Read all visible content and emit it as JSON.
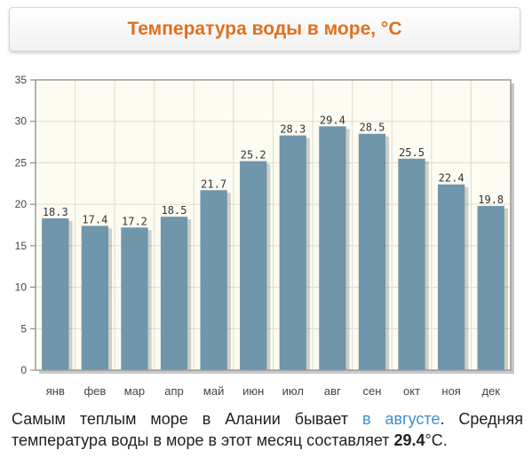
{
  "header": {
    "title": "Температура воды в море, °C"
  },
  "chart_data": {
    "type": "bar",
    "categories": [
      "янв",
      "фев",
      "мар",
      "апр",
      "май",
      "июн",
      "июл",
      "авг",
      "сен",
      "окт",
      "ноя",
      "дек"
    ],
    "values": [
      18.3,
      17.4,
      17.2,
      18.5,
      21.7,
      25.2,
      28.3,
      29.4,
      28.5,
      25.5,
      22.4,
      19.8
    ],
    "data_labels": [
      "18.3",
      "17.4",
      "17.2",
      "18.5",
      "21.7",
      "25.2",
      "28.3",
      "29.4",
      "28.5",
      "25.5",
      "22.4",
      "19.8"
    ],
    "ylim": [
      0,
      35
    ],
    "yticks": [
      0,
      5,
      10,
      15,
      20,
      25,
      30,
      35
    ],
    "grid": true,
    "colors": {
      "bar": "#6f96ab",
      "background": "#fdfcf2",
      "title": "#e0701e"
    }
  },
  "caption": {
    "text1": "Самым теплым море в Алании бывает ",
    "link": "в августе",
    "text2": ". Средняя температура воды в море в этот месяц составляет ",
    "value": "29.4",
    "unit": "°C."
  }
}
